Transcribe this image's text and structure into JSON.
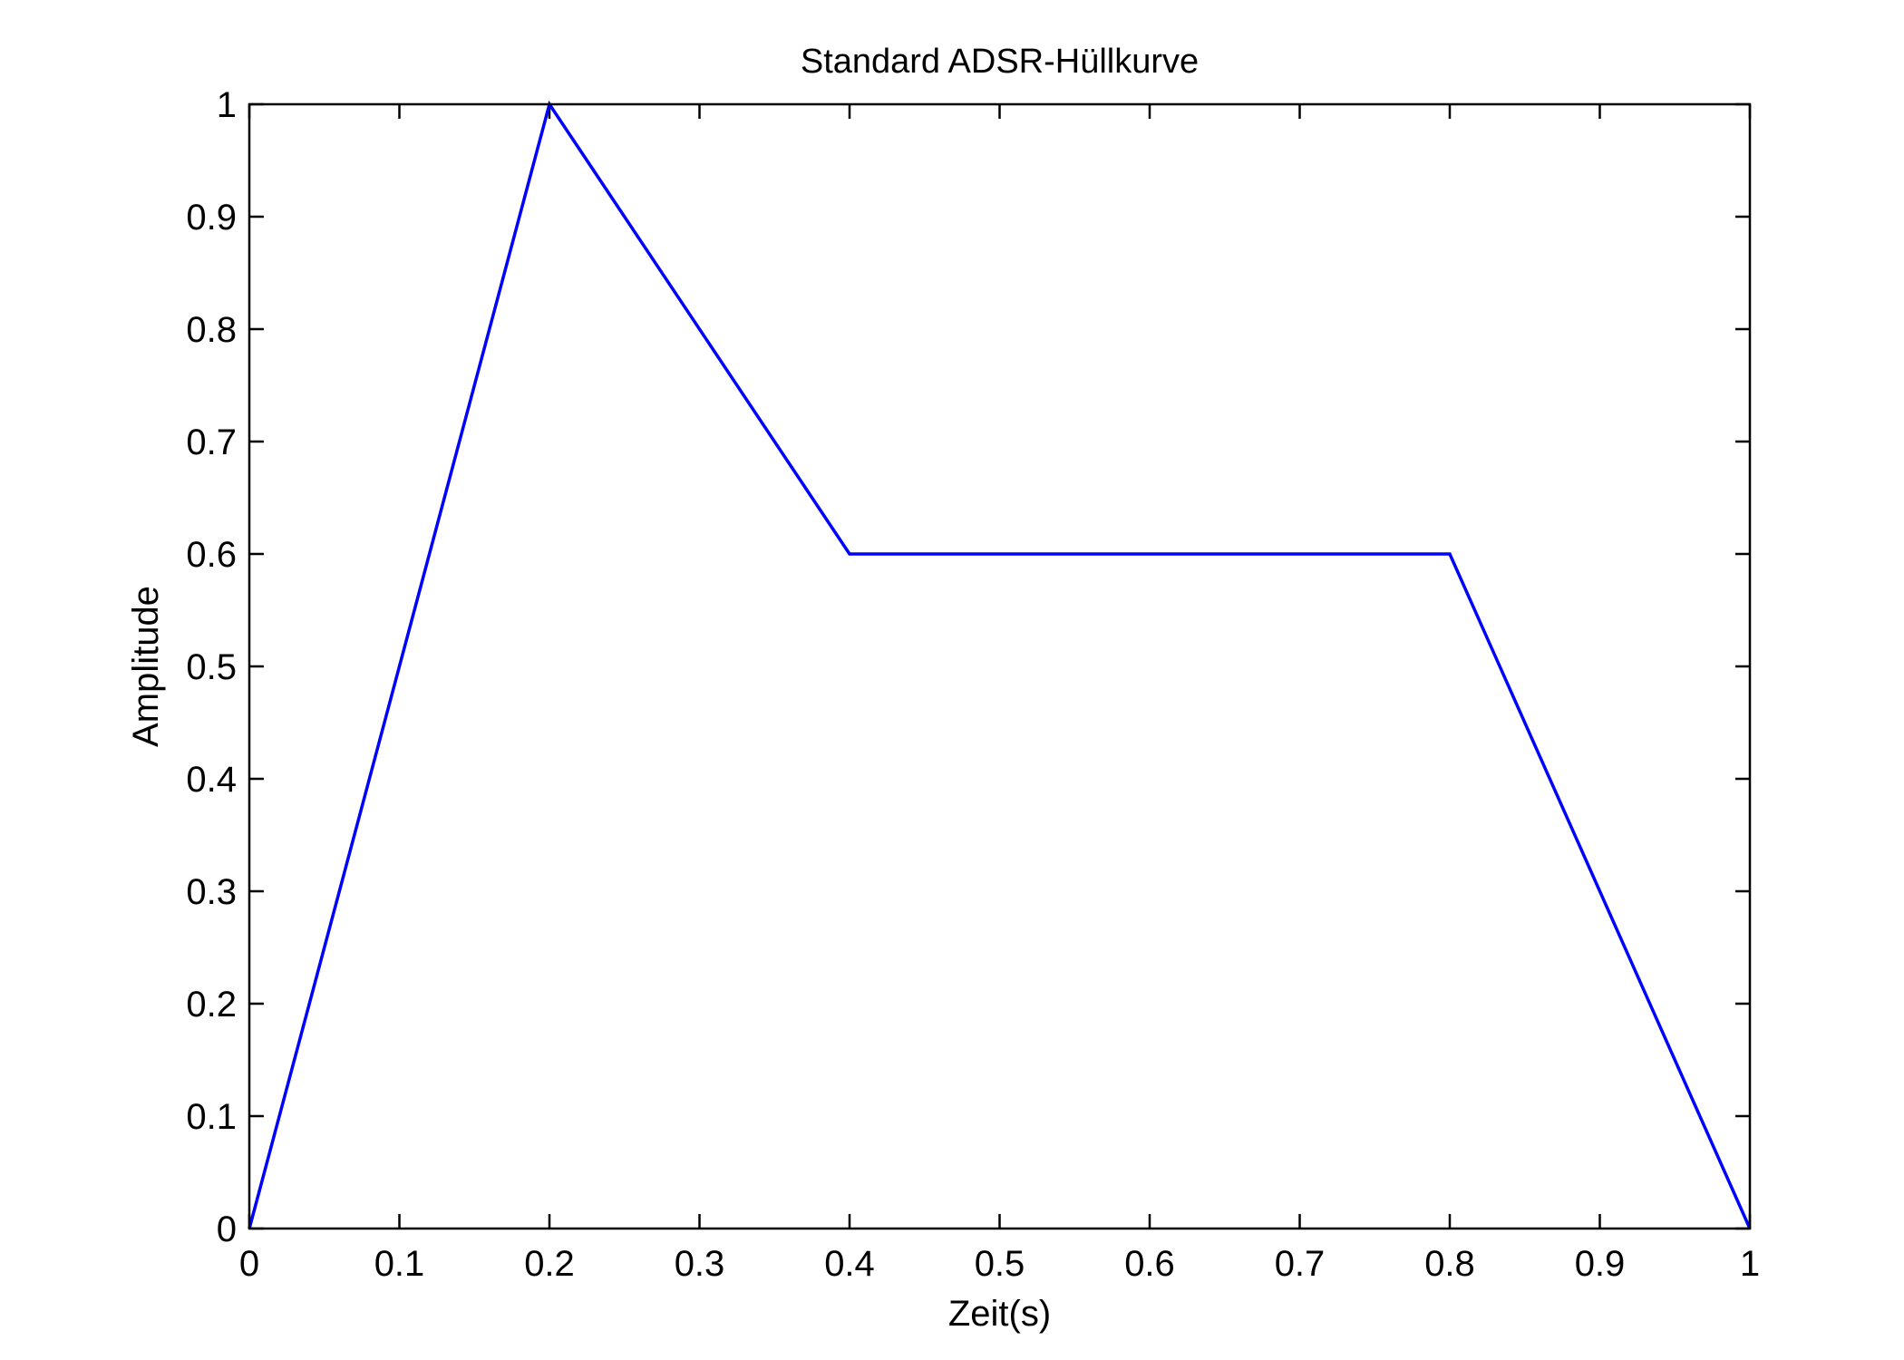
{
  "chart_data": {
    "type": "line",
    "title": "Standard ADSR-Hüllkurve",
    "xlabel": "Zeit(s)",
    "ylabel": "Amplitude",
    "xlim": [
      0,
      1
    ],
    "ylim": [
      0,
      1
    ],
    "x_ticks": [
      0,
      0.1,
      0.2,
      0.3,
      0.4,
      0.5,
      0.6,
      0.7,
      0.8,
      0.9,
      1
    ],
    "x_tick_labels": [
      "0",
      "0.1",
      "0.2",
      "0.3",
      "0.4",
      "0.5",
      "0.6",
      "0.7",
      "0.8",
      "0.9",
      "1"
    ],
    "y_ticks": [
      0,
      0.1,
      0.2,
      0.3,
      0.4,
      0.5,
      0.6,
      0.7,
      0.8,
      0.9,
      1
    ],
    "y_tick_labels": [
      "0",
      "0.1",
      "0.2",
      "0.3",
      "0.4",
      "0.5",
      "0.6",
      "0.7",
      "0.8",
      "0.9",
      "1"
    ],
    "grid": false,
    "series": [
      {
        "color": "#0000ff",
        "x": [
          0,
          0.2,
          0.4,
          0.8,
          1
        ],
        "y": [
          0,
          1,
          0.6,
          0.6,
          0
        ]
      }
    ]
  }
}
